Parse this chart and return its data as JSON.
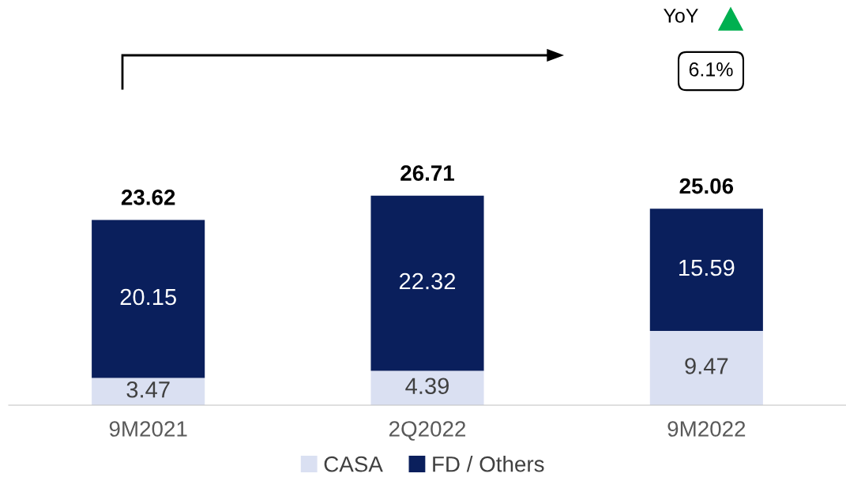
{
  "chart_data": {
    "type": "bar",
    "stacked": true,
    "categories": [
      "9M2021",
      "2Q2022",
      "9M2022"
    ],
    "series": [
      {
        "name": "CASA",
        "color": "#dae0f2",
        "values": [
          3.47,
          4.39,
          9.47
        ]
      },
      {
        "name": "FD / Others",
        "color": "#0a1f5c",
        "values": [
          20.15,
          22.32,
          15.59
        ]
      }
    ],
    "data_labels": true,
    "totals": [
      "23.62",
      "26.71",
      "25.06"
    ],
    "annotations": [
      "YoY",
      "6.1%"
    ],
    "legend": "bottom",
    "grid": false
  }
}
